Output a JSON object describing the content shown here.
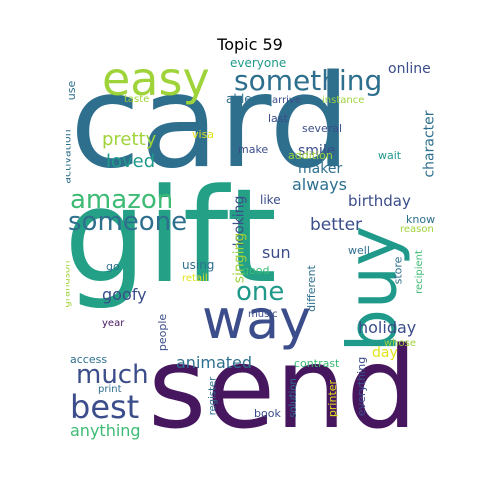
{
  "title": "Topic 59",
  "colors": {
    "purple": "#46175f",
    "indigo": "#3b4d8a",
    "blue": "#2e6f8e",
    "teal": "#1f9a8a",
    "green": "#3dbb74",
    "lime": "#9fd33a",
    "yellow": "#e0e41a"
  },
  "words": {
    "gift": "gift",
    "card": "card",
    "send": "send",
    "buy": "buy",
    "way": "way",
    "easy": "easy",
    "something": "something",
    "amazon": "amazon",
    "someone": "someone",
    "best": "best",
    "much": "much",
    "one": "one",
    "pretty": "pretty",
    "loved": "loved",
    "holiday": "holiday",
    "birthday": "birthday",
    "better": "better",
    "goofy": "goofy",
    "anything": "anything",
    "animated": "animated",
    "always": "always",
    "maker": "maker",
    "smile": "smile",
    "character": "character",
    "looking": "looking",
    "sun": "sun",
    "singing": "singing",
    "online": "online",
    "everyone": "everyone",
    "able": "able",
    "arrive": "arrive",
    "instance": "instance",
    "last": "last",
    "several": "several",
    "addition": "addition",
    "wait": "wait",
    "visa": "visa",
    "make": "make",
    "taste": "taste",
    "use": "use",
    "activation": "activation",
    "like": "like",
    "know": "know",
    "reason": "reason",
    "using": "using",
    "retail": "retail",
    "good": "good",
    "well": "well",
    "go": "go",
    "grandson": "grandson",
    "people": "people",
    "year": "year",
    "music": "music",
    "different": "different",
    "store": "store",
    "recipient": "recipient",
    "day": "day",
    "whose": "whose",
    "contrast": "contrast",
    "access": "access",
    "print": "print",
    "register": "register",
    "book": "book",
    "solution": "solution",
    "printer": "printer",
    "everything": "everything"
  }
}
